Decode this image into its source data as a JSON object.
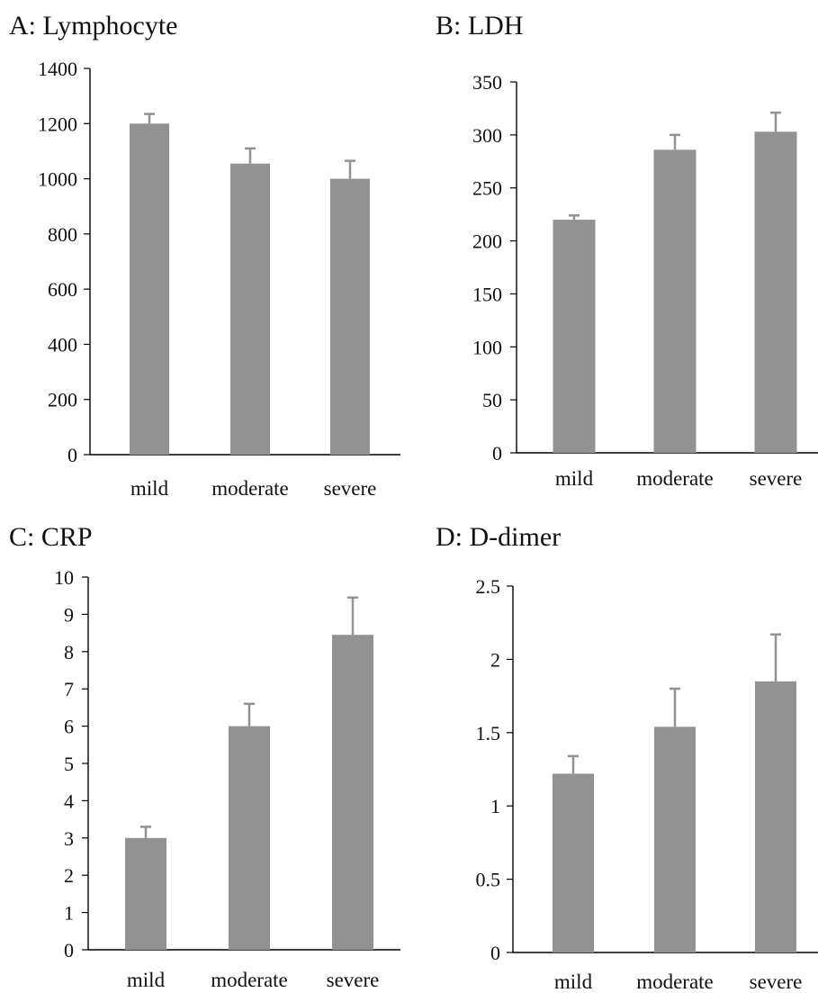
{
  "colors": {
    "bar": "#929292",
    "axis": "#000000",
    "text": "#111111"
  },
  "chart_data": [
    {
      "panel": "A",
      "title": "A: Lymphocyte",
      "type": "bar",
      "categories": [
        "mild",
        "moderate",
        "severe"
      ],
      "values": [
        1200,
        1055,
        1000
      ],
      "errors": [
        35,
        55,
        65
      ],
      "ylim": [
        0,
        1400
      ],
      "yticks": [
        "0",
        "200",
        "400",
        "600",
        "800",
        "1000",
        "1200",
        "1400"
      ],
      "grid": false
    },
    {
      "panel": "B",
      "title": "B: LDH",
      "type": "bar",
      "categories": [
        "mild",
        "moderate",
        "severe"
      ],
      "values": [
        220,
        286,
        303
      ],
      "errors": [
        4,
        14,
        18
      ],
      "ylim": [
        0,
        350
      ],
      "yticks": [
        "0",
        "50",
        "100",
        "150",
        "200",
        "250",
        "300",
        "350"
      ],
      "grid": false
    },
    {
      "panel": "C",
      "title": "C: CRP",
      "type": "bar",
      "categories": [
        "mild",
        "moderate",
        "severe"
      ],
      "values": [
        3.0,
        6.0,
        8.45
      ],
      "errors": [
        0.3,
        0.6,
        1.0
      ],
      "ylim": [
        0,
        10
      ],
      "yticks": [
        "0",
        "1",
        "2",
        "3",
        "4",
        "5",
        "6",
        "7",
        "8",
        "9",
        "10"
      ],
      "grid": false
    },
    {
      "panel": "D",
      "title": "D: D-dimer",
      "type": "bar",
      "categories": [
        "mild",
        "moderate",
        "severe"
      ],
      "values": [
        1.22,
        1.54,
        1.85
      ],
      "errors": [
        0.12,
        0.26,
        0.32
      ],
      "ylim": [
        0,
        2.5
      ],
      "yticks": [
        "0",
        "0.5",
        "1",
        "1.5",
        "2",
        "2.5"
      ],
      "grid": false
    }
  ]
}
